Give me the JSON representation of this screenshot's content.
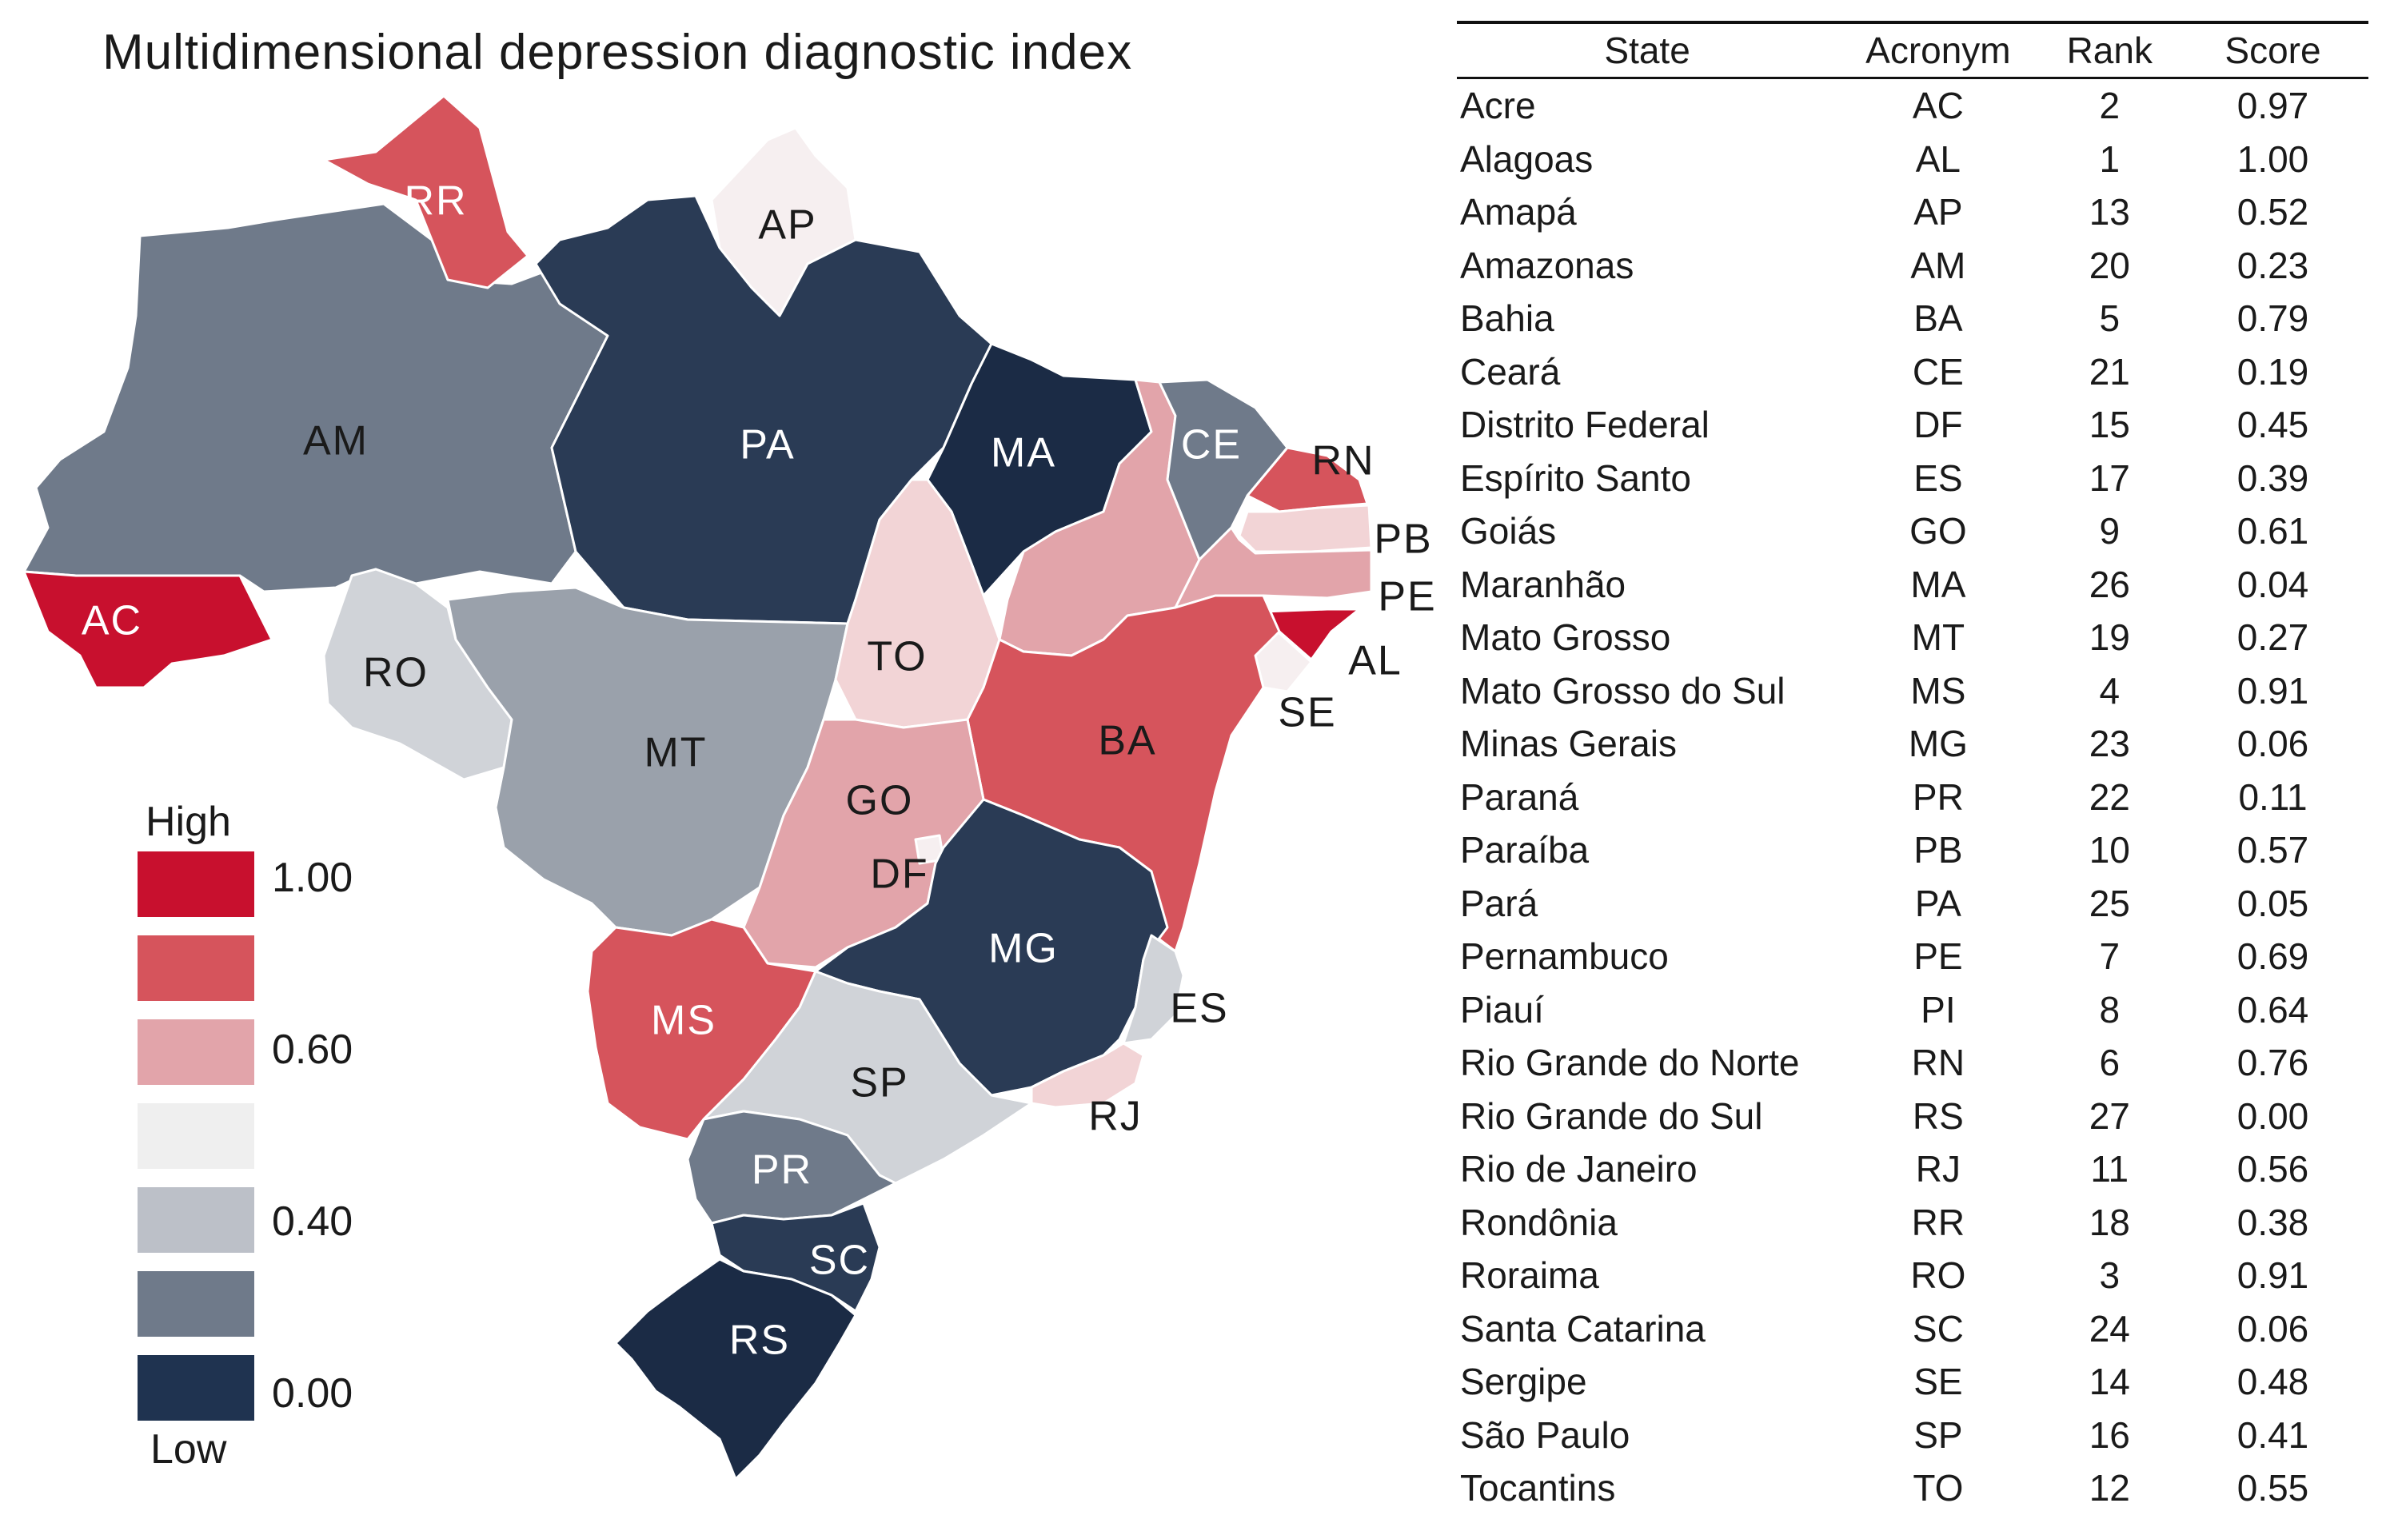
{
  "title": "Multidimensional depression diagnostic index",
  "legend": {
    "high_label": "High",
    "low_label": "Low",
    "ticks": [
      "1.00",
      "0.60",
      "0.40",
      "0.00"
    ],
    "colors": [
      "#c8102e",
      "#d6545c",
      "#e2a4aa",
      "#efefef",
      "#bcc0c8",
      "#6f7a8a",
      "#1f3350"
    ]
  },
  "palette": {
    "red_dark": "#c8102e",
    "red": "#d6545c",
    "pink": "#e2a4aa",
    "pink_light": "#f2d4d6",
    "white": "#f6eff0",
    "grey_light": "#d0d3d8",
    "grey": "#9aa1ab",
    "slate": "#6f7a8a",
    "navy": "#2a3b55",
    "navy_dark": "#1b2b45"
  },
  "map_labels": {
    "RR": "RR",
    "AP": "AP",
    "AM": "AM",
    "PA": "PA",
    "MA": "MA",
    "CE": "CE",
    "RN": "RN",
    "PB": "PB",
    "PE": "PE",
    "AL": "AL",
    "SE": "SE",
    "AC": "AC",
    "RO": "RO",
    "TO": "TO",
    "MT": "MT",
    "BA": "BA",
    "GO": "GO",
    "DF": "DF",
    "MG": "MG",
    "ES": "ES",
    "MS": "MS",
    "SP": "SP",
    "RJ": "RJ",
    "PR": "PR",
    "SC": "SC",
    "RS": "RS"
  },
  "table": {
    "headers": {
      "state": "State",
      "acronym": "Acronym",
      "rank": "Rank",
      "score": "Score"
    },
    "rows": [
      {
        "state": "Acre",
        "acronym": "AC",
        "rank": "2",
        "score": "0.97"
      },
      {
        "state": "Alagoas",
        "acronym": "AL",
        "rank": "1",
        "score": "1.00"
      },
      {
        "state": "Amapá",
        "acronym": "AP",
        "rank": "13",
        "score": "0.52"
      },
      {
        "state": "Amazonas",
        "acronym": "AM",
        "rank": "20",
        "score": "0.23"
      },
      {
        "state": "Bahia",
        "acronym": "BA",
        "rank": "5",
        "score": "0.79"
      },
      {
        "state": "Ceará",
        "acronym": "CE",
        "rank": "21",
        "score": "0.19"
      },
      {
        "state": "Distrito Federal",
        "acronym": "DF",
        "rank": "15",
        "score": "0.45"
      },
      {
        "state": "Espírito Santo",
        "acronym": "ES",
        "rank": "17",
        "score": "0.39"
      },
      {
        "state": "Goiás",
        "acronym": "GO",
        "rank": "9",
        "score": "0.61"
      },
      {
        "state": "Maranhão",
        "acronym": "MA",
        "rank": "26",
        "score": "0.04"
      },
      {
        "state": "Mato Grosso",
        "acronym": "MT",
        "rank": "19",
        "score": "0.27"
      },
      {
        "state": "Mato Grosso do Sul",
        "acronym": "MS",
        "rank": "4",
        "score": "0.91"
      },
      {
        "state": "Minas Gerais",
        "acronym": "MG",
        "rank": "23",
        "score": "0.06"
      },
      {
        "state": "Paraná",
        "acronym": "PR",
        "rank": "22",
        "score": "0.11"
      },
      {
        "state": "Paraíba",
        "acronym": "PB",
        "rank": "10",
        "score": "0.57"
      },
      {
        "state": "Pará",
        "acronym": "PA",
        "rank": "25",
        "score": "0.05"
      },
      {
        "state": "Pernambuco",
        "acronym": "PE",
        "rank": "7",
        "score": "0.69"
      },
      {
        "state": "Piauí",
        "acronym": "PI",
        "rank": "8",
        "score": "0.64"
      },
      {
        "state": "Rio Grande do Norte",
        "acronym": "RN",
        "rank": "6",
        "score": "0.76"
      },
      {
        "state": "Rio Grande do Sul",
        "acronym": "RS",
        "rank": "27",
        "score": "0.00"
      },
      {
        "state": "Rio de Janeiro",
        "acronym": "RJ",
        "rank": "11",
        "score": "0.56"
      },
      {
        "state": "Rondônia",
        "acronym": "RR",
        "rank": "18",
        "score": "0.38"
      },
      {
        "state": "Roraima",
        "acronym": "RO",
        "rank": "3",
        "score": "0.91"
      },
      {
        "state": "Santa Catarina",
        "acronym": "SC",
        "rank": "24",
        "score": "0.06"
      },
      {
        "state": "Sergipe",
        "acronym": "SE",
        "rank": "14",
        "score": "0.48"
      },
      {
        "state": "São Paulo",
        "acronym": "SP",
        "rank": "16",
        "score": "0.41"
      },
      {
        "state": "Tocantins",
        "acronym": "TO",
        "rank": "12",
        "score": "0.55"
      }
    ]
  }
}
